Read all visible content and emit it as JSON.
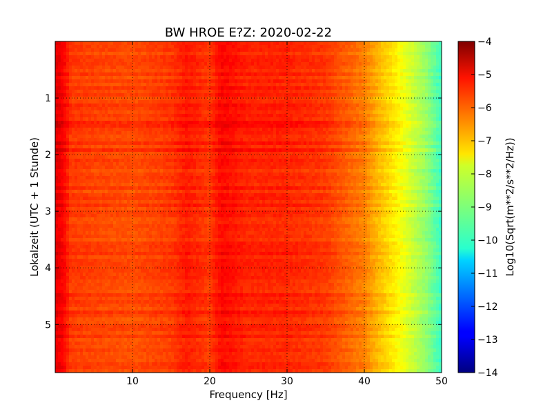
{
  "chart_data": {
    "type": "heatmap",
    "title": "BW HROE E?Z: 2020-02-22",
    "xlabel": "Frequency [Hz]",
    "ylabel": "Lokalzeit (UTC + 1 Stunde)",
    "xlim": [
      0,
      50
    ],
    "ylim": [
      0,
      5.85
    ],
    "y_inverted": true,
    "x_ticks": [
      10,
      20,
      30,
      40,
      50
    ],
    "y_ticks": [
      1,
      2,
      3,
      4,
      5
    ],
    "grid": true,
    "colorbar": {
      "label": "Log10(Sqrt(m**2/s**2/Hz))",
      "min": -14,
      "max": -4,
      "ticks": [
        -4,
        -5,
        -6,
        -7,
        -8,
        -9,
        -10,
        -11,
        -12,
        -13,
        -14
      ],
      "colormap": "jet"
    },
    "spectrum_profile": {
      "frequency_hz": [
        0,
        1,
        2,
        5,
        10,
        15,
        17,
        20,
        21.5,
        25,
        30,
        35,
        40,
        42,
        44,
        46,
        48,
        50
      ],
      "log10_amplitude": [
        -5.0,
        -5.2,
        -5.8,
        -5.9,
        -6.0,
        -5.8,
        -5.5,
        -5.8,
        -5.3,
        -5.6,
        -5.6,
        -5.8,
        -6.5,
        -7.1,
        -7.6,
        -8.2,
        -8.8,
        -9.7
      ]
    }
  }
}
